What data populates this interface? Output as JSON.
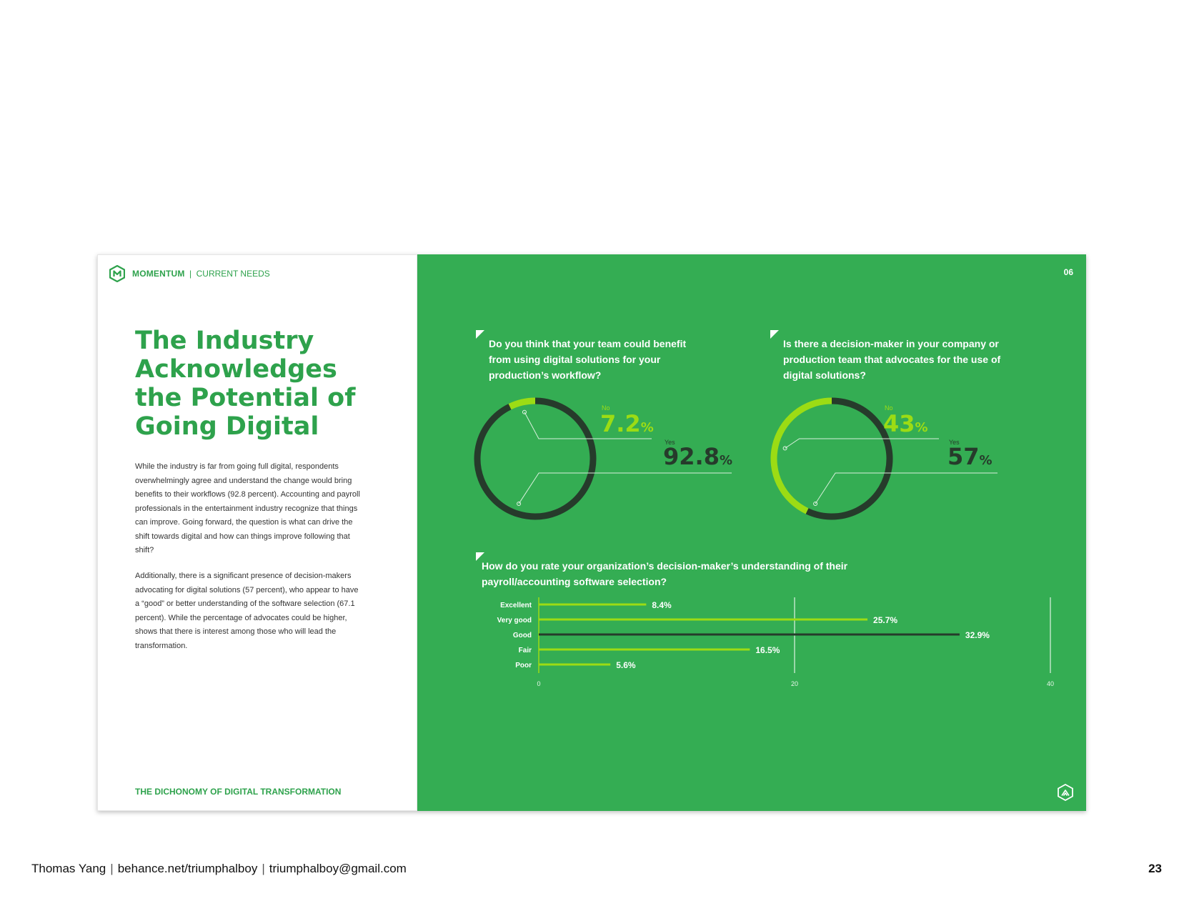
{
  "brand": {
    "name": "MOMENTUM",
    "separator": "|",
    "section": "CURRENT NEEDS"
  },
  "headline": "The Industry Acknowledges the Potential of Going Digital",
  "paragraphs": [
    "While the industry is far from going full digital, respondents overwhelmingly agree and understand the change would bring benefits to their workflows (92.8 percent). Accounting and payroll professionals in the entertainment industry recognize that things can improve. Going forward, the question is what can drive the shift towards digital and how can things improve following that shift?",
    "Additionally, there is a significant presence of decision-makers advocating for digital solutions (57 percent), who appear to have a “good” or better understanding of the software selection (67.1 percent). While the percentage of advocates could be higher, shows that there is interest among those who will lead the transformation."
  ],
  "left_footer": "THE DICHONOMY OF DIGITAL TRANSFORMATION",
  "page_number": "06",
  "colors": {
    "green_bg": "#34ad53",
    "lime": "#9cdc14",
    "dark": "#263b2b",
    "text_green": "#2ea24c",
    "white": "#ffffff"
  },
  "icons": [
    "momentum-logo-icon",
    "home-logo-icon"
  ],
  "chart_data": [
    {
      "type": "pie",
      "title": "Do you think that your team could benefit from using digital solutions for your production’s workflow?",
      "labels": [
        "No",
        "Yes"
      ],
      "values": [
        7.2,
        92.8
      ],
      "value_texts": [
        "7.2",
        "92.8"
      ],
      "unit": "%"
    },
    {
      "type": "pie",
      "title": "Is there a decision-maker in your company or production team that advocates for the use of digital solutions?",
      "labels": [
        "No",
        "Yes"
      ],
      "values": [
        43,
        57
      ],
      "value_texts": [
        "43",
        "57"
      ],
      "unit": "%"
    },
    {
      "type": "bar",
      "orientation": "horizontal",
      "title": "How do you rate your organization’s decision-maker’s understanding of their payroll/accounting software selection?",
      "categories": [
        "Excellent",
        "Very good",
        "Good",
        "Fair",
        "Poor"
      ],
      "values": [
        8.4,
        25.7,
        32.9,
        16.5,
        5.6
      ],
      "value_labels": [
        "8.4%",
        "25.7%",
        "32.9%",
        "16.5%",
        "5.6%"
      ],
      "highlight": "Good",
      "xlim": [
        0,
        40
      ],
      "xticks": [
        "0",
        "20",
        "40"
      ]
    }
  ],
  "footer": {
    "name": "Thomas Yang",
    "sep": "|",
    "site": "behance.net/triumphalboy",
    "email": "triumphalboy@gmail.com",
    "page": "23"
  }
}
